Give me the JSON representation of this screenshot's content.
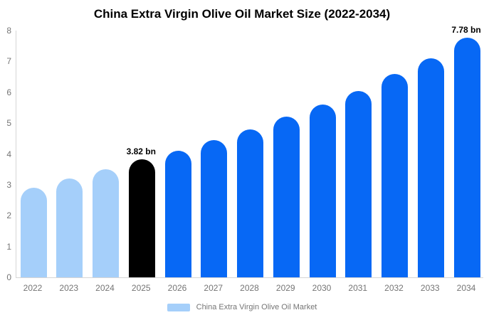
{
  "title": "China Extra Virgin Olive Oil Market Size (2022-2034)",
  "chart_data": {
    "type": "bar",
    "title": "China Extra Virgin Olive Oil Market Size (2022-2034)",
    "categories": [
      "2022",
      "2023",
      "2024",
      "2025",
      "2026",
      "2027",
      "2028",
      "2029",
      "2030",
      "2031",
      "2032",
      "2033",
      "2034"
    ],
    "values": [
      2.9,
      3.2,
      3.5,
      3.82,
      4.1,
      4.45,
      4.8,
      5.2,
      5.6,
      6.05,
      6.6,
      7.1,
      7.78
    ],
    "bar_colors": [
      "#A5CFFA",
      "#A5CFFA",
      "#A5CFFA",
      "#000000",
      "#0768F5",
      "#0768F5",
      "#0768F5",
      "#0768F5",
      "#0768F5",
      "#0768F5",
      "#0768F5",
      "#0768F5",
      "#0768F5"
    ],
    "data_labels": [
      {
        "index": 3,
        "text": "3.82 bn"
      },
      {
        "index": 12,
        "text": "7.78 bn"
      }
    ],
    "ylim": [
      0,
      8
    ],
    "yticks": [
      0,
      1,
      2,
      3,
      4,
      5,
      6,
      7,
      8
    ],
    "grid": false,
    "legend": {
      "position": "bottom",
      "items": [
        {
          "label": "China Extra Virgin Olive Oil Market",
          "color": "#A5CFFA"
        }
      ]
    }
  },
  "colors": {
    "past_bar": "#A5CFFA",
    "highlight_bar": "#000000",
    "future_bar": "#0768F5",
    "axis_line": "#D6D6D6",
    "tick_text": "#757575",
    "title_text": "#000000"
  }
}
